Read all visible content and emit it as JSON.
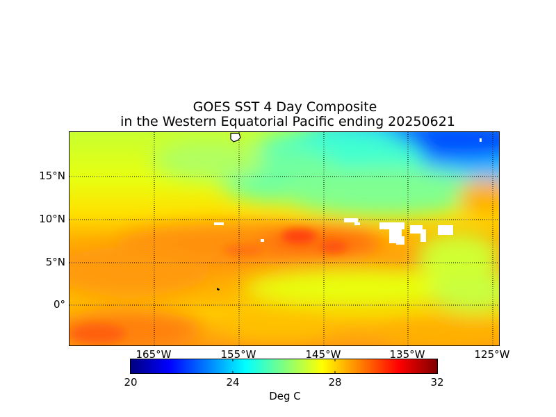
{
  "title": {
    "line1": "GOES SST 4 Day Composite",
    "line2": "in the Western Equatorial Pacific ending 20250621"
  },
  "map": {
    "longitude_ticks": [
      "165°W",
      "155°W",
      "145°W",
      "135°W",
      "125°W"
    ],
    "latitude_ticks": [
      "15°N",
      "10°N",
      "5°N",
      "0°"
    ],
    "longitude_range_deg": [
      -175,
      -125
    ],
    "latitude_range_deg": [
      -5,
      20
    ],
    "gridlines": "dotted"
  },
  "colorbar": {
    "label": "Deg C",
    "ticks": [
      "20",
      "24",
      "28",
      "32"
    ],
    "range": [
      20,
      32
    ],
    "colormap": "jet",
    "colors": [
      "#00007f",
      "#0000ff",
      "#007fff",
      "#00ffff",
      "#7fff7f",
      "#ffff00",
      "#ff7f00",
      "#ff0000",
      "#7f0000"
    ]
  },
  "colors": {
    "warm": "#ff8c1a",
    "land": "#ffffff",
    "missing": "#ffffff"
  }
}
